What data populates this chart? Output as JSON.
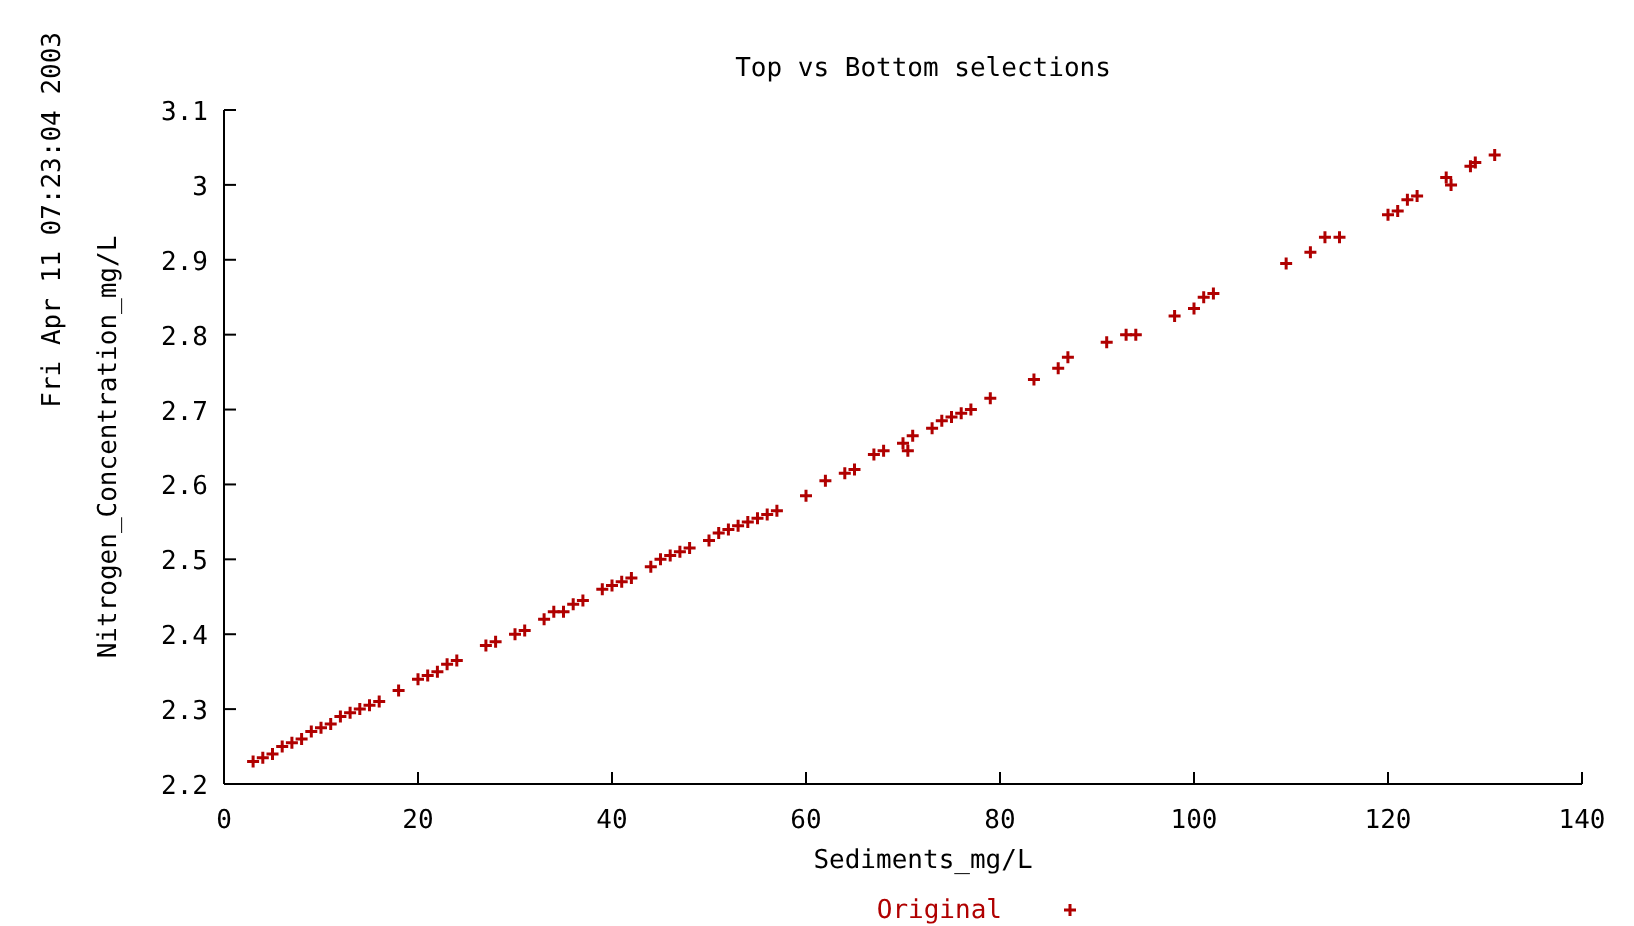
{
  "chart_data": {
    "type": "scatter",
    "title": "Top vs Bottom selections",
    "xlabel": "Sediments_mg/L",
    "ylabel": "Nitrogen_Concentration_mg/L",
    "annotations": [
      "Fri Apr 11 07:23:04 2003"
    ],
    "xlim": [
      0,
      140
    ],
    "xticks": [
      0,
      20,
      40,
      60,
      80,
      100,
      120,
      140
    ],
    "ylim": [
      2.2,
      3.1
    ],
    "yticks": [
      {
        "value": 2.2,
        "label": "2.2"
      },
      {
        "value": 2.3,
        "label": "2.3"
      },
      {
        "value": 2.4,
        "label": "2.4"
      },
      {
        "value": 2.5,
        "label": "2.5"
      },
      {
        "value": 2.6,
        "label": "2.6"
      },
      {
        "value": 2.7,
        "label": "2.7"
      },
      {
        "value": 2.8,
        "label": "2.8"
      },
      {
        "value": 2.9,
        "label": "2.9"
      },
      {
        "value": 3,
        "label": "3"
      },
      {
        "value": 3.1,
        "label": "3.1"
      }
    ],
    "grid": false,
    "legend": "bottom",
    "marker": "cross",
    "series": [
      {
        "name": "Original",
        "color": "#b00000",
        "x": [
          3,
          4,
          5,
          6,
          7,
          8,
          9,
          10,
          11,
          12,
          13,
          14,
          15,
          16,
          18,
          20,
          21,
          22,
          23,
          24,
          27,
          28,
          30,
          31,
          33,
          34,
          35,
          36,
          37,
          39,
          40,
          41,
          42,
          44,
          45,
          46,
          47,
          48,
          50,
          51,
          52,
          53,
          54,
          55,
          56,
          57,
          60,
          62,
          64,
          65,
          67,
          68,
          70,
          70.5,
          71,
          73,
          74,
          75,
          76,
          77,
          79,
          83.5,
          86,
          87,
          91,
          93,
          94,
          98,
          100,
          101,
          102,
          109.5,
          112,
          113.5,
          115,
          120,
          121,
          122,
          123,
          126,
          126.5,
          128.5,
          129,
          131
        ],
        "values": [
          2.23,
          2.235,
          2.24,
          2.25,
          2.255,
          2.26,
          2.27,
          2.275,
          2.28,
          2.29,
          2.295,
          2.3,
          2.305,
          2.31,
          2.325,
          2.34,
          2.345,
          2.35,
          2.36,
          2.365,
          2.385,
          2.39,
          2.4,
          2.405,
          2.42,
          2.43,
          2.43,
          2.44,
          2.445,
          2.46,
          2.465,
          2.47,
          2.475,
          2.49,
          2.5,
          2.505,
          2.51,
          2.515,
          2.525,
          2.535,
          2.54,
          2.545,
          2.55,
          2.555,
          2.56,
          2.565,
          2.585,
          2.605,
          2.615,
          2.62,
          2.64,
          2.645,
          2.655,
          2.645,
          2.665,
          2.675,
          2.685,
          2.69,
          2.695,
          2.7,
          2.715,
          2.74,
          2.755,
          2.77,
          2.79,
          2.8,
          2.8,
          2.825,
          2.835,
          2.85,
          2.855,
          2.895,
          2.91,
          2.93,
          2.93,
          2.96,
          2.965,
          2.98,
          2.985,
          3.01,
          3.0,
          3.025,
          3.03,
          3.04
        ]
      }
    ]
  }
}
